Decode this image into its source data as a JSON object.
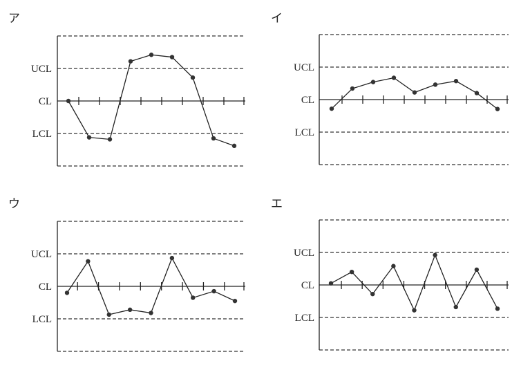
{
  "chart_data": [
    {
      "type": "line",
      "title": "ア",
      "level_labels": {
        "ucl": "UCL",
        "cl": "CL",
        "lcl": "LCL"
      },
      "ylim": [
        -2,
        2
      ],
      "levels": {
        "ucl": 1,
        "cl": 0,
        "lcl": -1
      },
      "series": [
        {
          "values": [
            0,
            -1.12,
            -1.18,
            1.22,
            1.42,
            1.35,
            0.72,
            -1.15,
            -1.38
          ]
        }
      ]
    },
    {
      "type": "line",
      "title": "イ",
      "level_labels": {
        "ucl": "UCL",
        "cl": "CL",
        "lcl": "LCL"
      },
      "ylim": [
        -2,
        2
      ],
      "levels": {
        "ucl": 1,
        "cl": 0,
        "lcl": -1
      },
      "series": [
        {
          "values": [
            -0.28,
            0.34,
            0.54,
            0.67,
            0.22,
            0.46,
            0.57,
            0.2,
            -0.29
          ]
        }
      ]
    },
    {
      "type": "line",
      "title": "ウ",
      "level_labels": {
        "ucl": "UCL",
        "cl": "CL",
        "lcl": "LCL"
      },
      "ylim": [
        -2,
        2
      ],
      "levels": {
        "ucl": 1,
        "cl": 0,
        "lcl": -1
      },
      "series": [
        {
          "values": [
            -0.2,
            0.77,
            -0.87,
            -0.72,
            -0.82,
            0.87,
            -0.35,
            -0.15,
            -0.45
          ]
        }
      ]
    },
    {
      "type": "line",
      "title": "エ",
      "level_labels": {
        "ucl": "UCL",
        "cl": "CL",
        "lcl": "LCL"
      },
      "ylim": [
        -2,
        2
      ],
      "levels": {
        "ucl": 1,
        "cl": 0,
        "lcl": -1
      },
      "series": [
        {
          "values": [
            0.05,
            0.4,
            -0.28,
            0.58,
            -0.78,
            0.92,
            -0.68,
            0.47,
            -0.73
          ]
        }
      ]
    }
  ]
}
